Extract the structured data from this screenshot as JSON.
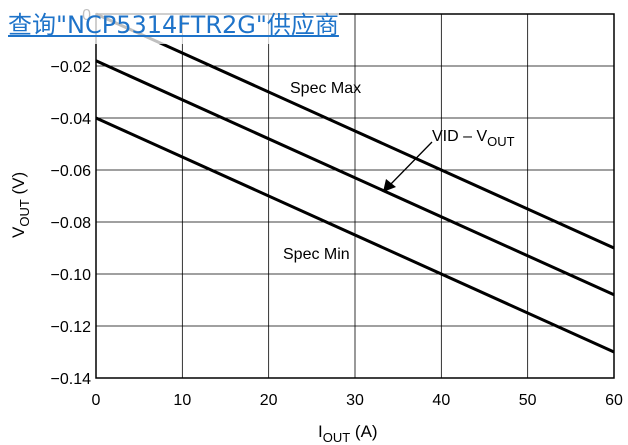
{
  "overlay_link": {
    "text": "查询\"NCP5314FTR2G\"供应商",
    "color": "#1e73c9"
  },
  "chart_data": {
    "type": "line",
    "title": "",
    "xlabel": {
      "main": "I",
      "sub": "OUT",
      "suffix": " (A)"
    },
    "ylabel": {
      "main": "V",
      "sub": "OUT",
      "suffix": " (V)"
    },
    "xlim": [
      0,
      60
    ],
    "ylim": [
      -0.14,
      0
    ],
    "x_ticks": [
      0,
      10,
      20,
      30,
      40,
      50,
      60
    ],
    "y_ticks": [
      0,
      -0.02,
      -0.04,
      -0.06,
      -0.08,
      -0.1,
      -0.12,
      -0.14
    ],
    "y_tick_labels": [
      "0",
      "−0.02",
      "−0.04",
      "−0.06",
      "−0.08",
      "−0.10",
      "−0.12",
      "−0.14"
    ],
    "grid": true,
    "line_color": "#000000",
    "series": [
      {
        "x": [
          0,
          60
        ],
        "y": [
          0.0,
          -0.09
        ]
      },
      {
        "x": [
          0,
          60
        ],
        "y": [
          -0.018,
          -0.108
        ]
      },
      {
        "x": [
          0,
          60
        ],
        "y": [
          -0.04,
          -0.13
        ]
      }
    ],
    "annotations": {
      "spec_max": "Spec Max",
      "spec_min": "Spec Min",
      "vid_label": {
        "main": "VID – V",
        "sub": "OUT"
      }
    }
  }
}
